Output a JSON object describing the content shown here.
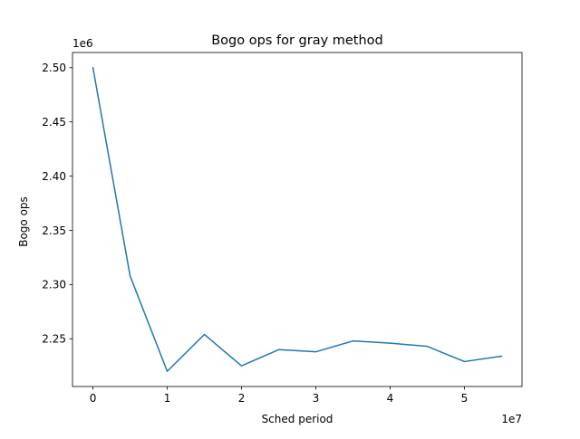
{
  "chart_data": {
    "type": "line",
    "title": "Bogo ops for gray method",
    "xlabel": "Sched period",
    "ylabel": "Bogo ops",
    "x_offset_label": "1e7",
    "y_offset_label": "1e6",
    "xlim": [
      -2750000,
      57750000
    ],
    "ylim": [
      2206000,
      2514000
    ],
    "x_ticks": [
      0,
      10000000,
      20000000,
      30000000,
      40000000,
      50000000
    ],
    "x_tick_labels": [
      "0",
      "1",
      "2",
      "3",
      "4",
      "5"
    ],
    "y_ticks": [
      2250000,
      2300000,
      2350000,
      2400000,
      2450000,
      2500000
    ],
    "y_tick_labels": [
      "2.25",
      "2.30",
      "2.35",
      "2.40",
      "2.45",
      "2.50"
    ],
    "grid": false,
    "legend": "none",
    "series": [
      {
        "color": "#1f77b4",
        "x": [
          0,
          5000000,
          10000000,
          15000000,
          20000000,
          25000000,
          30000000,
          35000000,
          40000000,
          45000000,
          50000000,
          55000000
        ],
        "y": [
          2500000,
          2308000,
          2220000,
          2254000,
          2225000,
          2240000,
          2238000,
          2248000,
          2246000,
          2243000,
          2229000,
          2234000
        ]
      }
    ]
  }
}
